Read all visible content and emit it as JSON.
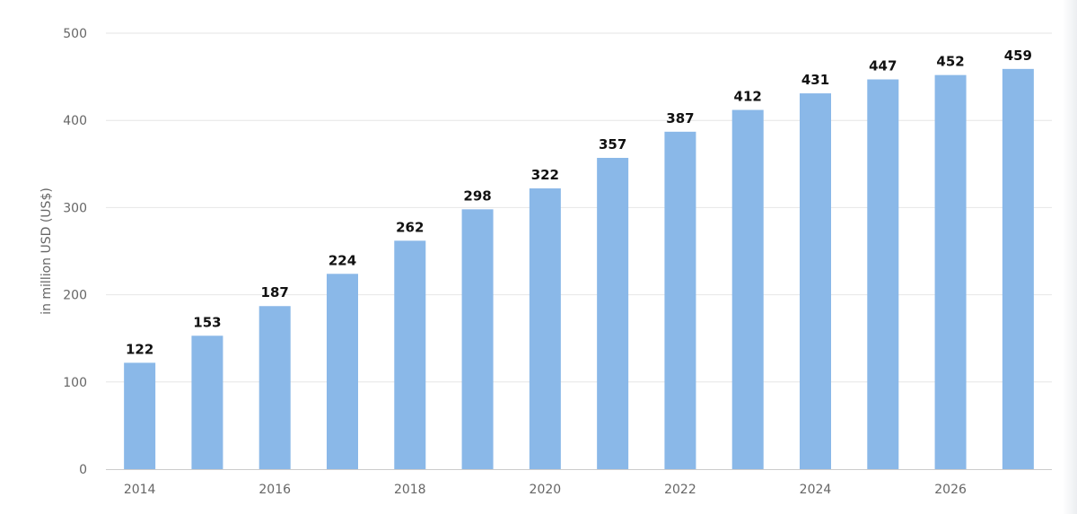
{
  "chart_data": {
    "type": "bar",
    "title": "",
    "xlabel": "",
    "ylabel": "in million USD (US$)",
    "categories": [
      "2014",
      "2015",
      "2016",
      "2017",
      "2018",
      "2019",
      "2020",
      "2021",
      "2022",
      "2023",
      "2024",
      "2025",
      "2026",
      "2027"
    ],
    "x_tick_labels": [
      "2014",
      "2016",
      "2018",
      "2020",
      "2022",
      "2024",
      "2026"
    ],
    "values": [
      122,
      153,
      187,
      224,
      262,
      298,
      322,
      357,
      387,
      412,
      431,
      447,
      452,
      459
    ],
    "data_labels": [
      "122",
      "153",
      "187",
      "224",
      "262",
      "298",
      "322",
      "357",
      "387",
      "412",
      "431",
      "447",
      "452",
      "459"
    ],
    "ylim": [
      0,
      500
    ],
    "y_ticks": [
      0,
      100,
      200,
      300,
      400,
      500
    ],
    "y_tick_labels": [
      "0",
      "100",
      "200",
      "300",
      "400",
      "500"
    ],
    "grid": true,
    "legend": "none",
    "colors": {
      "bar": "#8ab8e8",
      "grid": "#e6e6e6",
      "axis": "#cccccc",
      "label": "#111111",
      "tick": "#666666"
    }
  }
}
